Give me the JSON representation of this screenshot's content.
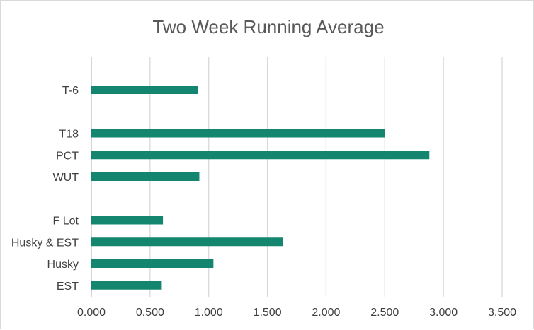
{
  "chart_data": {
    "type": "bar",
    "orientation": "horizontal",
    "title": "Two Week Running Average",
    "xlabel": "",
    "ylabel": "",
    "xlim": [
      0,
      3.5
    ],
    "x_ticks": [
      0,
      0.5,
      1.0,
      1.5,
      2.0,
      2.5,
      3.0,
      3.5
    ],
    "x_tick_labels": [
      "0.000",
      "0.500",
      "1.000",
      "1.500",
      "2.000",
      "2.500",
      "3.000",
      "3.500"
    ],
    "grid": true,
    "legend": "none",
    "bar_color": "#14856F",
    "categories": [
      "T-6",
      "",
      "T18",
      "PCT",
      "WUT",
      "",
      "F Lot",
      "Husky & EST",
      "Husky",
      "EST"
    ],
    "values": [
      0.91,
      null,
      2.5,
      2.88,
      0.92,
      null,
      0.61,
      1.63,
      1.04,
      0.6
    ]
  }
}
